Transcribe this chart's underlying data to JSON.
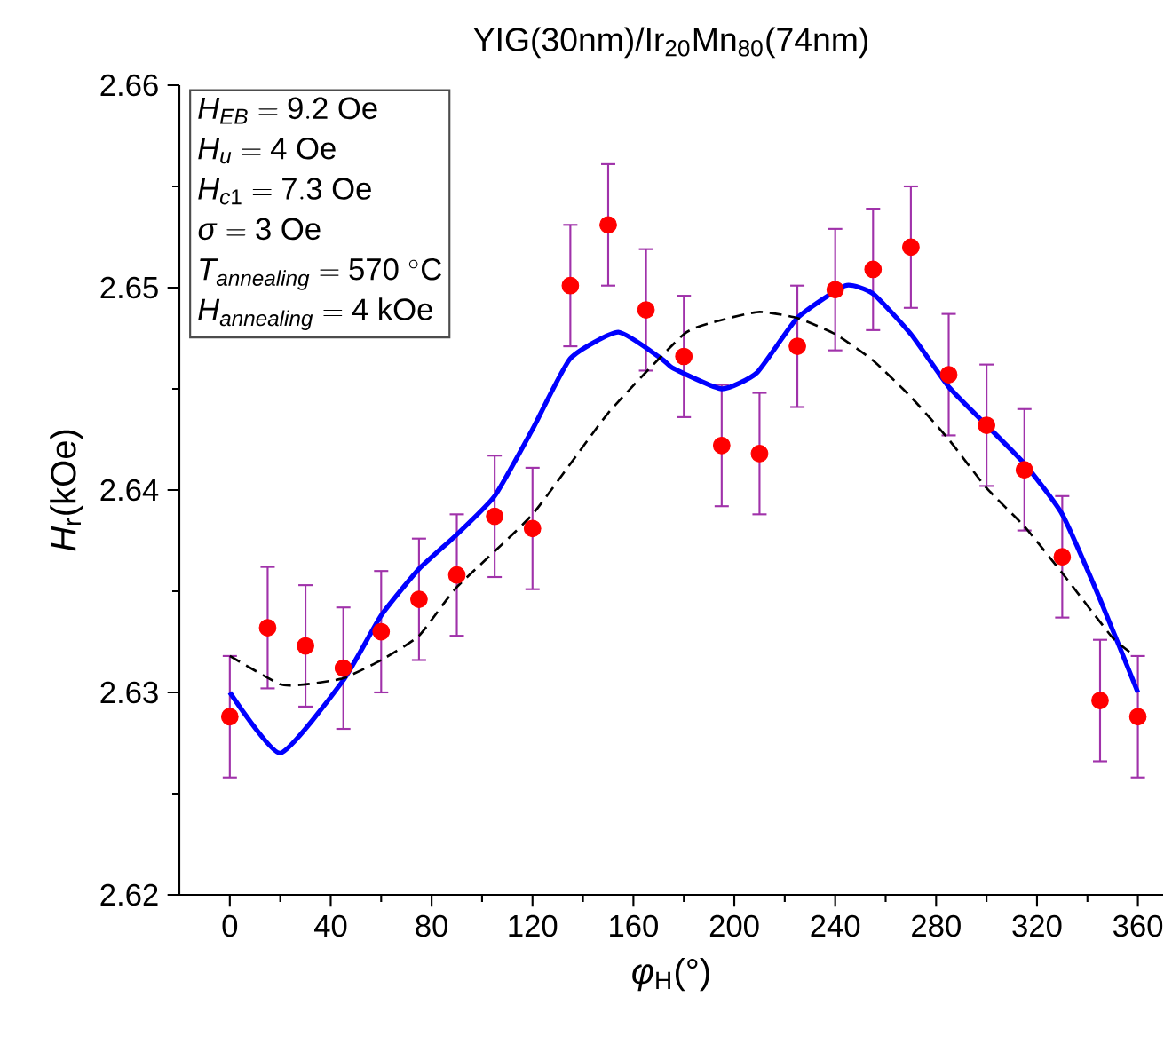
{
  "chart_data": {
    "type": "scatter",
    "title": "YIG(30nm)/Ir$_{20}$Mn$_{80}$(74nm)",
    "xlabel": "*φ*$_{H}$(°)",
    "ylabel": "*H*$_{r}$(kOe)",
    "annotations": [
      "H_{EB} = 9.2\\ \\mathrm{Oe}",
      "H_{u} = 4\\ \\mathrm{Oe}",
      "H_{c1} = 7.3\\ \\mathrm{Oe}",
      "\\sigma = 3\\ \\mathrm{Oe}",
      "T_{annealing} = 570\\ {}^{\\circ}\\mathrm{C}",
      "H_{annealing} = 4\\ \\mathrm{kOe}"
    ],
    "xlim": [
      -20,
      370
    ],
    "ylim": [
      2.62,
      2.66
    ],
    "xticks": [
      0,
      40,
      80,
      120,
      160,
      200,
      240,
      280,
      320,
      360
    ],
    "yticks": [
      2.62,
      2.63,
      2.64,
      2.65,
      2.66
    ],
    "grid": false,
    "series": [
      {
        "color": "#ff0000",
        "marker": "circle",
        "x": [
          0,
          15,
          30,
          45,
          60,
          75,
          90,
          105,
          120,
          135,
          150,
          165,
          180,
          195,
          210,
          225,
          240,
          255,
          270,
          285,
          300,
          315,
          330,
          345,
          360
        ],
        "values": [
          2.6288,
          2.6332,
          2.6323,
          2.6312,
          2.633,
          2.6346,
          2.6358,
          2.6387,
          2.6381,
          2.6501,
          2.6531,
          2.6489,
          2.6466,
          2.6422,
          2.6418,
          2.6471,
          2.6499,
          2.6509,
          2.652,
          2.6457,
          2.6432,
          2.641,
          2.6367,
          2.6296,
          2.6288
        ],
        "errors": [
          0.003,
          0.003,
          0.003,
          0.003,
          0.003,
          0.003,
          0.003,
          0.003,
          0.003,
          0.003,
          0.003,
          0.003,
          0.003,
          0.003,
          0.003,
          0.003,
          0.003,
          0.003,
          0.003,
          0.003,
          0.003,
          0.003,
          0.003,
          0.003,
          0.003
        ]
      },
      {
        "type": "line",
        "color": "#0000ff",
        "marker": "none",
        "line_style": "solid",
        "x": [
          0,
          20,
          45,
          60,
          75,
          90,
          105,
          120,
          135,
          154,
          171,
          176,
          195,
          209,
          225,
          244,
          255,
          270,
          285,
          300,
          315,
          330,
          345,
          360
        ],
        "values": [
          2.63,
          2.627,
          2.6306,
          2.6338,
          2.6361,
          2.6378,
          2.6397,
          2.643,
          2.6465,
          2.6478,
          2.6465,
          2.646,
          2.645,
          2.6458,
          2.6485,
          2.6501,
          2.6497,
          2.6477,
          2.6451,
          2.6432,
          2.6413,
          2.6388,
          2.6346,
          2.63
        ]
      },
      {
        "type": "line",
        "color": "#000000",
        "marker": "none",
        "line_style": "dashed",
        "x": [
          0,
          20,
          30,
          45,
          60,
          75,
          90,
          120,
          150,
          180,
          195,
          210,
          225,
          240,
          255,
          270,
          285,
          300,
          315,
          330,
          350,
          359
        ],
        "values": [
          2.6318,
          2.6304,
          2.6304,
          2.6307,
          2.6316,
          2.6328,
          2.6352,
          2.6388,
          2.6438,
          2.6477,
          2.6484,
          2.6488,
          2.6485,
          2.6477,
          2.6464,
          2.6446,
          2.6425,
          2.6401,
          2.6382,
          2.6359,
          2.6327,
          2.6318
        ]
      }
    ]
  }
}
